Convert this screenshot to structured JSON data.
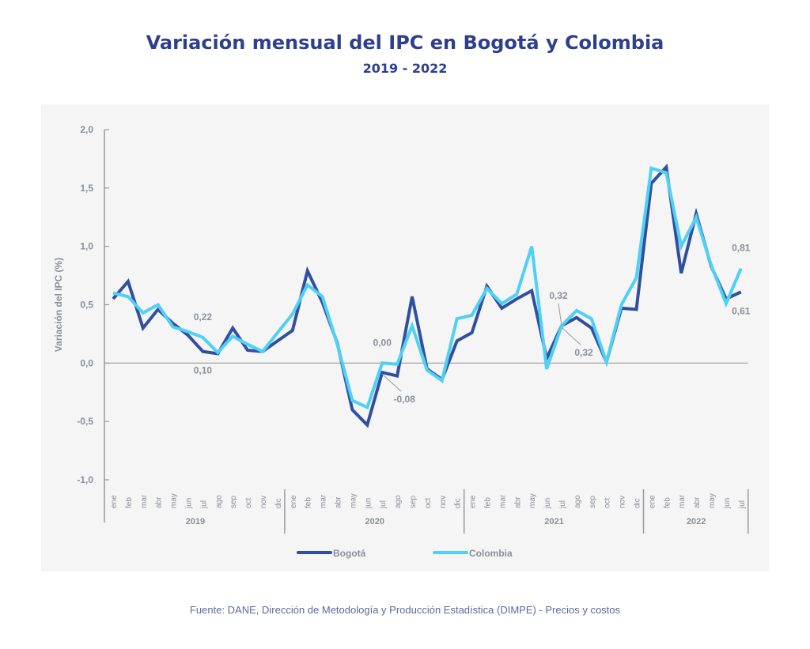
{
  "header": {
    "title": "Variación mensual del IPC en Bogotá y Colombia",
    "subtitle": "2019 - 2022"
  },
  "footer": {
    "source": "Fuente: DANE, Dirección de Metodología y Producción Estadística (DIMPE) - Precios y costos"
  },
  "colors": {
    "title": "#2e3f8c",
    "bogota": "#30509f",
    "colombia": "#4fd0f5",
    "axis": "#9a9a9a",
    "label": "#8a8f99",
    "panel": "#f5f5f5"
  },
  "chart_data": {
    "type": "line",
    "title": "Variación mensual del IPC en Bogotá y Colombia",
    "subtitle": "2019 - 2022",
    "xlabel": "",
    "ylabel": "Variación del IPC (%)",
    "ylim": [
      -1.0,
      2.0
    ],
    "yticks": [
      "2,0",
      "1,5",
      "1,0",
      "0,5",
      "0,0",
      "-0,5",
      "-1,0"
    ],
    "ytick_values": [
      2.0,
      1.5,
      1.0,
      0.5,
      0.0,
      -0.5,
      -1.0
    ],
    "grid": false,
    "legend_position": "bottom-center",
    "years": [
      {
        "label": "2019",
        "months": [
          "ene",
          "feb",
          "mar",
          "abr",
          "may",
          "jun",
          "jul",
          "ago",
          "sep",
          "oct",
          "nov",
          "dic"
        ]
      },
      {
        "label": "2020",
        "months": [
          "ene",
          "feb",
          "mar",
          "abr",
          "may",
          "jun",
          "jul",
          "ago",
          "sep",
          "oct",
          "nov",
          "dic"
        ]
      },
      {
        "label": "2021",
        "months": [
          "ene",
          "feb",
          "mar",
          "abr",
          "may",
          "jun",
          "jul",
          "ago",
          "sep",
          "oct",
          "nov",
          "dic"
        ]
      },
      {
        "label": "2022",
        "months": [
          "ene",
          "feb",
          "mar",
          "abr",
          "may",
          "jun",
          "jul"
        ]
      }
    ],
    "series": [
      {
        "name": "Bogotá",
        "values": [
          0.55,
          0.7,
          0.3,
          0.46,
          0.34,
          0.24,
          0.1,
          0.08,
          0.3,
          0.11,
          0.1,
          0.19,
          0.28,
          0.79,
          0.52,
          0.17,
          -0.4,
          -0.53,
          -0.08,
          -0.11,
          0.57,
          -0.05,
          -0.14,
          0.19,
          0.26,
          0.66,
          0.47,
          0.55,
          0.62,
          0.04,
          0.32,
          0.39,
          0.3,
          0.01,
          0.47,
          0.46,
          1.54,
          1.68,
          0.77,
          1.28,
          0.83,
          0.55,
          0.61
        ]
      },
      {
        "name": "Colombia",
        "values": [
          0.6,
          0.57,
          0.43,
          0.5,
          0.31,
          0.27,
          0.22,
          0.09,
          0.23,
          0.16,
          0.1,
          0.26,
          0.42,
          0.67,
          0.57,
          0.16,
          -0.32,
          -0.38,
          0.0,
          -0.01,
          0.32,
          -0.06,
          -0.15,
          0.38,
          0.41,
          0.64,
          0.51,
          0.59,
          1.0,
          -0.05,
          0.32,
          0.45,
          0.38,
          0.01,
          0.5,
          0.73,
          1.67,
          1.63,
          1.0,
          1.25,
          0.84,
          0.51,
          0.81
        ]
      }
    ],
    "annotations": [
      {
        "text": "0,22",
        "series": "Colombia",
        "index": 6,
        "placement": "above"
      },
      {
        "text": "0,10",
        "series": "Bogotá",
        "index": 6,
        "placement": "below"
      },
      {
        "text": "0,00",
        "series": "Colombia",
        "index": 18,
        "placement": "above"
      },
      {
        "text": "-0,08",
        "series": "Bogotá",
        "index": 18,
        "placement": "below-right-leader"
      },
      {
        "text": "0,32",
        "series": "Colombia",
        "index": 30,
        "placement": "above-leader"
      },
      {
        "text": "0,32",
        "series": "Bogotá",
        "index": 30,
        "placement": "below-right-leader"
      },
      {
        "text": "0,81",
        "series": "Colombia",
        "index": 42,
        "placement": "above"
      },
      {
        "text": "0,61",
        "series": "Bogotá",
        "index": 42,
        "placement": "below"
      }
    ]
  }
}
